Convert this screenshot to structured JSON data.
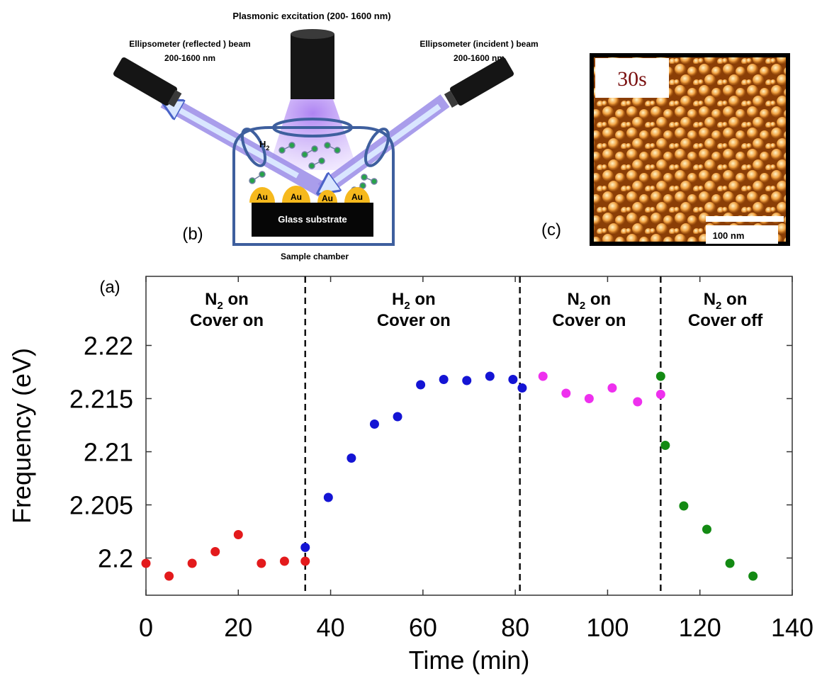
{
  "schematic": {
    "panel_label": "(b)",
    "top_title": "Plasmonic excitation (200- 1600 nm)",
    "left_beam_line1": "Ellipsometer (reflected ) beam",
    "left_beam_line2": "200-1600 nm",
    "right_beam_line1": "Ellipsometer (incident ) beam",
    "right_beam_line2": "200-1600 nm",
    "gas_label_main": "H",
    "gas_label_sub": "2",
    "au_labels": [
      "Au",
      "Au",
      "Au",
      "Au"
    ],
    "substrate_label": "Glass substrate",
    "chamber_label": "Sample chamber"
  },
  "afm": {
    "panel_label": "(c)",
    "time_label": "30s",
    "scale_label": "100 nm"
  },
  "chart_data": {
    "type": "scatter",
    "panel_label": "(a)",
    "xlabel": "Time (min)",
    "ylabel": "Frequency (eV)",
    "xlim": [
      0,
      140
    ],
    "ylim": [
      2.1965,
      2.2265
    ],
    "xticks": [
      0,
      20,
      40,
      60,
      80,
      100,
      120,
      140
    ],
    "yticks": [
      2.2,
      2.205,
      2.21,
      2.215,
      2.22
    ],
    "ytick_labels": [
      "2.2",
      "2.205",
      "2.21",
      "2.215",
      "2.22"
    ],
    "grid": false,
    "dividers_x": [
      34.5,
      81,
      111.5
    ],
    "regions": [
      {
        "x_center": 17.5,
        "line1_main": "N",
        "line1_sub": "2",
        "line1_rest": " on",
        "line2": "Cover on"
      },
      {
        "x_center": 58,
        "line1_main": "H",
        "line1_sub": "2",
        "line1_rest": " on",
        "line2": "Cover on"
      },
      {
        "x_center": 96,
        "line1_main": "N",
        "line1_sub": "2",
        "line1_rest": " on",
        "line2": "Cover on"
      },
      {
        "x_center": 125.5,
        "line1_main": "N",
        "line1_sub": "2",
        "line1_rest": " on",
        "line2": "Cover off"
      }
    ],
    "series": [
      {
        "color": "#e31a1c",
        "x": [
          0,
          5,
          10,
          15,
          20,
          25,
          30,
          34.5
        ],
        "y": [
          2.1995,
          2.1983,
          2.1995,
          2.2006,
          2.2022,
          2.1995,
          2.1997,
          2.1997
        ]
      },
      {
        "color": "#1414d4",
        "x": [
          34.5,
          39.5,
          44.5,
          49.5,
          54.5,
          59.5,
          64.5,
          69.5,
          74.5,
          79.5,
          81.5
        ],
        "y": [
          2.201,
          2.2057,
          2.2094,
          2.2126,
          2.2133,
          2.2163,
          2.2168,
          2.2167,
          2.2171,
          2.2168,
          2.216
        ]
      },
      {
        "color": "#ee30ee",
        "x": [
          86,
          91,
          96,
          101,
          106.5,
          111.5
        ],
        "y": [
          2.2171,
          2.2155,
          2.215,
          2.216,
          2.2147,
          2.2154
        ]
      },
      {
        "color": "#138a13",
        "x": [
          111.5,
          112.5,
          116.5,
          121.5,
          126.5,
          131.5
        ],
        "y": [
          2.2171,
          2.2106,
          2.2049,
          2.2027,
          2.1995,
          2.1983
        ]
      }
    ]
  }
}
